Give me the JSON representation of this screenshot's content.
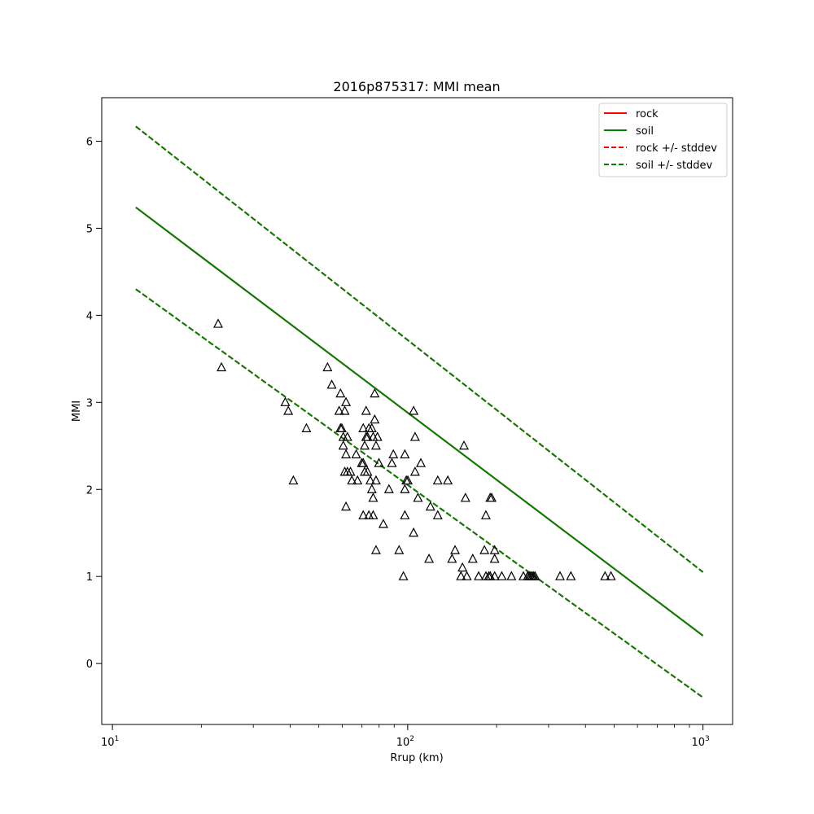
{
  "chart_data": {
    "type": "scatter",
    "title": "2016p875317: MMI mean",
    "xlabel": "Rrup (km)",
    "ylabel": "MMI",
    "xscale": "log",
    "xlim": [
      9.2,
      1260
    ],
    "ylim": [
      -0.7,
      6.5
    ],
    "grid": false,
    "legend_position": "top-right",
    "x_major_ticks": [
      {
        "value": 10,
        "base": "10",
        "exp": "1"
      },
      {
        "value": 100,
        "base": "10",
        "exp": "2"
      },
      {
        "value": 1000,
        "base": "10",
        "exp": "3"
      }
    ],
    "y_ticks": [
      {
        "value": 0,
        "label": "0"
      },
      {
        "value": 1,
        "label": "1"
      },
      {
        "value": 2,
        "label": "2"
      },
      {
        "value": 3,
        "label": "3"
      },
      {
        "value": 4,
        "label": "4"
      },
      {
        "value": 5,
        "label": "5"
      },
      {
        "value": 6,
        "label": "6"
      }
    ],
    "series": [
      {
        "name": "rock",
        "kind": "line",
        "color": "#ff0000",
        "dash": "solid",
        "x": [
          12,
          1000
        ],
        "y": [
          5.24,
          0.32
        ]
      },
      {
        "name": "soil",
        "kind": "line",
        "color": "#008000",
        "dash": "solid",
        "x": [
          12,
          1000
        ],
        "y": [
          5.24,
          0.32
        ]
      },
      {
        "name": "rock +/- stddev",
        "kind": "line",
        "color": "#ff0000",
        "dash": "dashed",
        "x": [
          12,
          1000
        ],
        "y": [
          6.17,
          1.05
        ],
        "y_lower": [
          4.3,
          -0.39
        ]
      },
      {
        "name": "soil +/- stddev",
        "kind": "line",
        "color": "#008000",
        "dash": "dashed",
        "x": [
          12,
          1000
        ],
        "y": [
          6.17,
          1.05
        ],
        "y_lower": [
          4.3,
          -0.39
        ]
      }
    ],
    "observations": {
      "marker": "triangle",
      "color": "#000000",
      "points": [
        [
          22.8,
          3.9
        ],
        [
          23.4,
          3.4
        ],
        [
          38.5,
          3.0
        ],
        [
          39.4,
          2.9
        ],
        [
          41.0,
          2.1
        ],
        [
          45.4,
          2.7
        ],
        [
          53.5,
          3.4
        ],
        [
          55.3,
          3.2
        ],
        [
          58.6,
          2.9
        ],
        [
          59.2,
          3.1
        ],
        [
          59.2,
          2.7
        ],
        [
          59.8,
          2.7
        ],
        [
          60.5,
          2.6
        ],
        [
          60.5,
          2.5
        ],
        [
          61.2,
          2.2
        ],
        [
          61.2,
          2.9
        ],
        [
          61.8,
          3.0
        ],
        [
          62.5,
          2.6
        ],
        [
          61.8,
          1.8
        ],
        [
          62.5,
          2.2
        ],
        [
          61.8,
          2.4
        ],
        [
          64.0,
          2.2
        ],
        [
          64.7,
          2.1
        ],
        [
          66.9,
          2.4
        ],
        [
          67.6,
          2.1
        ],
        [
          69.9,
          2.3
        ],
        [
          70.7,
          2.3
        ],
        [
          70.7,
          2.7
        ],
        [
          71.5,
          2.5
        ],
        [
          70.7,
          1.7
        ],
        [
          71.5,
          2.2
        ],
        [
          72.3,
          2.6
        ],
        [
          72.3,
          2.9
        ],
        [
          73.1,
          2.2
        ],
        [
          73.1,
          2.6
        ],
        [
          73.9,
          2.7
        ],
        [
          73.9,
          1.7
        ],
        [
          74.7,
          2.1
        ],
        [
          75.6,
          2.7
        ],
        [
          75.6,
          2.0
        ],
        [
          76.4,
          2.6
        ],
        [
          76.4,
          1.7
        ],
        [
          76.4,
          1.9
        ],
        [
          77.3,
          3.1
        ],
        [
          77.3,
          2.8
        ],
        [
          78.1,
          2.5
        ],
        [
          78.1,
          2.1
        ],
        [
          78.1,
          1.3
        ],
        [
          79.0,
          2.6
        ],
        [
          79.9,
          2.3
        ],
        [
          82.7,
          1.6
        ],
        [
          86.4,
          2.0
        ],
        [
          88.4,
          2.3
        ],
        [
          89.4,
          2.4
        ],
        [
          93.5,
          1.3
        ],
        [
          96.7,
          1.0
        ],
        [
          97.8,
          2.4
        ],
        [
          97.8,
          1.7
        ],
        [
          97.8,
          2.0
        ],
        [
          98.9,
          2.1
        ],
        [
          100.1,
          2.1
        ],
        [
          104.7,
          2.9
        ],
        [
          104.7,
          1.5
        ],
        [
          105.9,
          2.6
        ],
        [
          105.9,
          2.2
        ],
        [
          108.3,
          1.9
        ],
        [
          110.8,
          2.3
        ],
        [
          118.1,
          1.2
        ],
        [
          119.4,
          1.8
        ],
        [
          126.4,
          2.1
        ],
        [
          126.4,
          1.7
        ],
        [
          136.7,
          2.1
        ],
        [
          141.3,
          1.2
        ],
        [
          144.7,
          1.3
        ],
        [
          151.5,
          1.0
        ],
        [
          153.3,
          1.1
        ],
        [
          155.1,
          2.5
        ],
        [
          156.9,
          1.9
        ],
        [
          158.6,
          1.0
        ],
        [
          166.1,
          1.2
        ],
        [
          173.9,
          1.0
        ],
        [
          181.9,
          1.3
        ],
        [
          184.0,
          1.7
        ],
        [
          184.0,
          1.0
        ],
        [
          188.2,
          1.0
        ],
        [
          190.3,
          1.9
        ],
        [
          190.3,
          1.0
        ],
        [
          192.5,
          1.9
        ],
        [
          197.0,
          1.3
        ],
        [
          197.0,
          1.2
        ],
        [
          197.0,
          1.0
        ],
        [
          208.3,
          1.0
        ],
        [
          224.6,
          1.0
        ],
        [
          246.5,
          1.0
        ],
        [
          255.0,
          1.0
        ],
        [
          258.0,
          1.0
        ],
        [
          261.0,
          1.0
        ],
        [
          264.0,
          1.0
        ],
        [
          267.0,
          1.0
        ],
        [
          270.0,
          1.0
        ],
        [
          328.0,
          1.0
        ],
        [
          357.0,
          1.0
        ],
        [
          466.0,
          1.0
        ],
        [
          488.0,
          1.0
        ]
      ]
    }
  }
}
